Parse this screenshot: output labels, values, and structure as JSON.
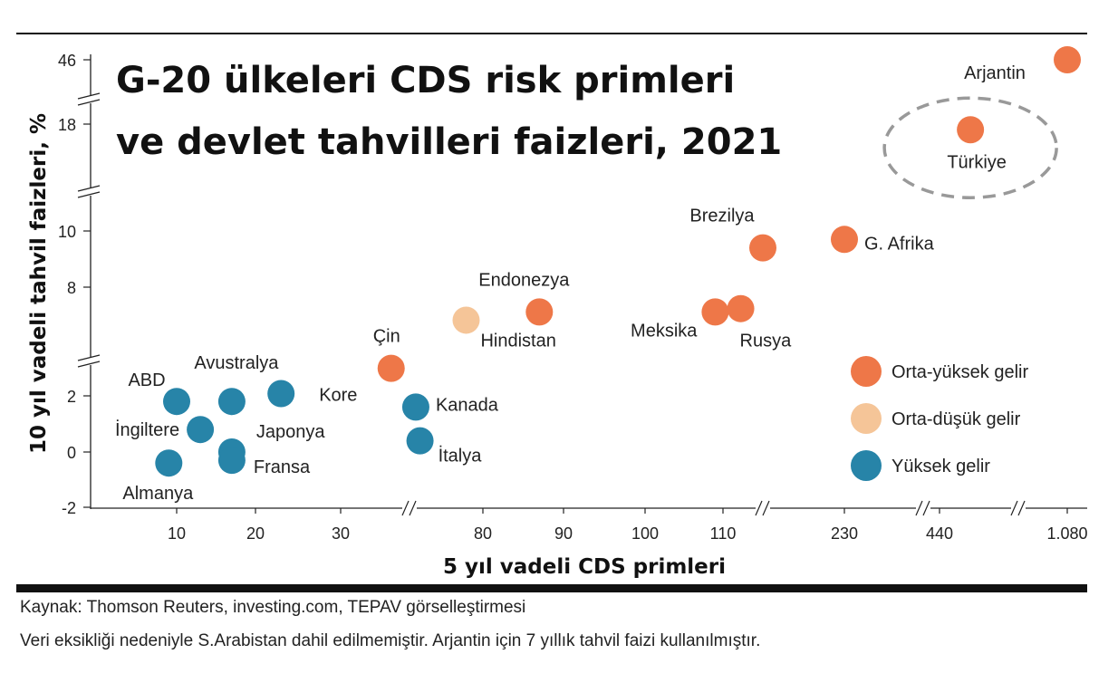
{
  "chart_data": {
    "type": "scatter",
    "title_lines": [
      "G-20 ülkeleri CDS risk primleri",
      "ve devlet tahvilleri faizleri, 2021"
    ],
    "xlabel": "5 yıl vadeli CDS primleri",
    "ylabel": "10 yıl vadeli tahvil faizleri, %",
    "x_tick_labels": [
      "10",
      "20",
      "30",
      "80",
      "90",
      "100",
      "110",
      "230",
      "440",
      "1.080"
    ],
    "y_tick_labels": [
      "-2",
      "0",
      "2",
      "8",
      "10",
      "18",
      "46"
    ],
    "axis_breaks": {
      "x": true,
      "y": true
    },
    "legend_placement": "right",
    "series": [
      {
        "name": "Orta-yüksek gelir",
        "color": "#ee7748",
        "points": [
          {
            "label": "Arjantin",
            "x": 1080,
            "y": 46
          },
          {
            "label": "Türkiye",
            "x": 500,
            "y": 17.5
          },
          {
            "label": "Brezilya",
            "x": 119,
            "y": 9.4
          },
          {
            "label": "G. Afrika",
            "x": 230,
            "y": 9.7
          },
          {
            "label": "Endonezya",
            "x": 87,
            "y": 6.5
          },
          {
            "label": "Meksika",
            "x": 109,
            "y": 6.5
          },
          {
            "label": "Rusya",
            "x": 114,
            "y": 6.7
          },
          {
            "label": "Çin",
            "x": 41,
            "y": 3.2
          }
        ]
      },
      {
        "name": "Orta-düşük gelir",
        "color": "#f5c598",
        "points": [
          {
            "label": "Hindistan",
            "x": 72,
            "y": 6.0
          }
        ]
      },
      {
        "name": "Yüksek gelir",
        "color": "#2784a8",
        "points": [
          {
            "label": "ABD",
            "x": 10,
            "y": 1.8
          },
          {
            "label": "Avustralya",
            "x": 17,
            "y": 1.8
          },
          {
            "label": "Kore",
            "x": 23,
            "y": 2.1
          },
          {
            "label": "İngiltere",
            "x": 13,
            "y": 0.8
          },
          {
            "label": "Japonya",
            "x": 17,
            "y": 0.0
          },
          {
            "label": "Fransa",
            "x": 17,
            "y": -0.3
          },
          {
            "label": "Almanya",
            "x": 9,
            "y": -0.4
          },
          {
            "label": "Kanada",
            "x": 48,
            "y": 1.6
          },
          {
            "label": "İtalya",
            "x": 50,
            "y": 0.4
          }
        ]
      }
    ],
    "highlight": {
      "label": "Türkiye",
      "style": "dashed-ellipse"
    }
  },
  "footer": {
    "source": "Kaynak: Thomson Reuters, investing.com, TEPAV görselleştirmesi",
    "note": "Veri eksikliği nedeniyle S.Arabistan dahil edilmemiştir. Arjantin için 7 yıllık tahvil faizi kullanılmıştır."
  }
}
